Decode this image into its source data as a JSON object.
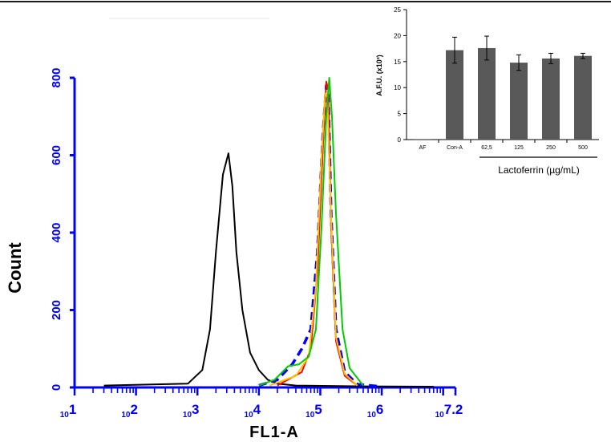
{
  "chart_data": [
    {
      "type": "line",
      "title": "",
      "xlabel": "FL1-A",
      "ylabel": "Count",
      "x_scale": "log",
      "xlim": [
        10,
        15848931.9
      ],
      "ylim": [
        0,
        800
      ],
      "x_ticks": [
        {
          "value": 10,
          "base": "10",
          "exp": "1"
        },
        {
          "value": 100,
          "base": "10",
          "exp": "2"
        },
        {
          "value": 1000,
          "base": "10",
          "exp": "3"
        },
        {
          "value": 10000,
          "base": "10",
          "exp": "4"
        },
        {
          "value": 100000,
          "base": "10",
          "exp": "5"
        },
        {
          "value": 1000000,
          "base": "10",
          "exp": "6"
        },
        {
          "value": 15848931.9,
          "base": "10",
          "exp": "7.2"
        }
      ],
      "y_ticks": [
        "0",
        "200",
        "400",
        "600",
        "800"
      ],
      "grid": false,
      "series": [
        {
          "color": "#000000",
          "dash": "",
          "x": [
            30,
            700,
            1200,
            1600,
            2000,
            2600,
            3200,
            3700,
            4300,
            5400,
            7200,
            10000,
            14000,
            20000,
            40000,
            500000,
            7000000
          ],
          "y": [
            5,
            10,
            45,
            150,
            350,
            550,
            605,
            520,
            350,
            200,
            90,
            45,
            20,
            10,
            5,
            3,
            2
          ]
        },
        {
          "color": "#0000ff",
          "dash": "10,6",
          "x": [
            10000,
            20000,
            35000,
            50000,
            70000,
            90000,
            110000,
            125000,
            135000,
            150000,
            180000,
            250000,
            400000,
            1000000
          ],
          "y": [
            5,
            20,
            60,
            100,
            150,
            350,
            650,
            780,
            760,
            450,
            150,
            40,
            8,
            2
          ]
        },
        {
          "color": "#ff0000",
          "dash": "",
          "x": [
            20000,
            50000,
            70000,
            90000,
            110000,
            125000,
            135000,
            150000,
            180000,
            250000,
            400000
          ],
          "y": [
            5,
            40,
            100,
            300,
            620,
            790,
            770,
            420,
            120,
            30,
            5
          ]
        },
        {
          "color": "#ffc000",
          "dash": "",
          "x": [
            15000,
            40000,
            65000,
            85000,
            105000,
            120000,
            130000,
            150000,
            180000,
            250000,
            400000
          ],
          "y": [
            5,
            30,
            80,
            260,
            600,
            760,
            750,
            440,
            130,
            35,
            5
          ]
        },
        {
          "color": "#00cc00",
          "dash": "",
          "x": [
            10000,
            18000,
            30000,
            45000,
            65000,
            85000,
            105000,
            125000,
            140000,
            155000,
            180000,
            230000,
            300000,
            500000
          ],
          "y": [
            5,
            20,
            55,
            60,
            80,
            150,
            420,
            700,
            800,
            700,
            450,
            150,
            50,
            5
          ]
        }
      ]
    },
    {
      "type": "bar",
      "categories": [
        "AF",
        "Con-A",
        "62,5",
        "125",
        "250",
        "500"
      ],
      "values": [
        0.1,
        17.2,
        17.6,
        14.8,
        15.6,
        16.1
      ],
      "errors": [
        0,
        2.5,
        2.3,
        1.5,
        1.0,
        0.5
      ],
      "ylabel": "A.F.U. (x10³)",
      "ylim": [
        0,
        25
      ],
      "yticks": [
        "0",
        "5",
        "10",
        "15",
        "20",
        "25"
      ],
      "group_label": "Lactoferrin (µg/mL)",
      "bar_color": "#595959"
    }
  ],
  "colors": {
    "axis": "#0000ff",
    "text": "#000000"
  }
}
